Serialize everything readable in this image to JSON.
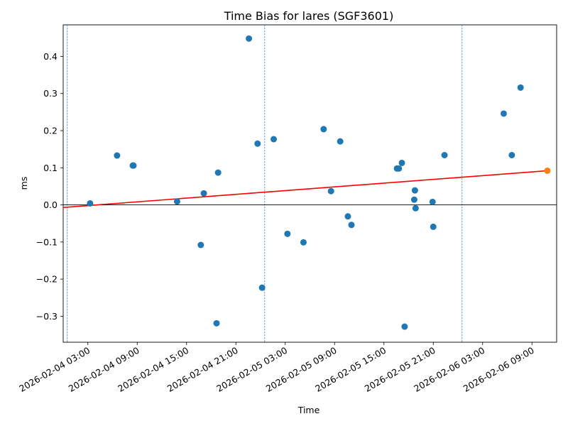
{
  "chart_data": {
    "type": "scatter",
    "title": "Time Bias for lares (SGF3601)",
    "xlabel": "Time",
    "ylabel": "ms",
    "xlim": [
      "2026-02-04 00:00",
      "2026-02-06 12:00"
    ],
    "ylim": [
      -0.37,
      0.485
    ],
    "x_ticks": [
      "2026-02-04 03:00",
      "2026-02-04 09:00",
      "2026-02-04 15:00",
      "2026-02-04 21:00",
      "2026-02-05 03:00",
      "2026-02-05 09:00",
      "2026-02-05 15:00",
      "2026-02-05 21:00",
      "2026-02-06 03:00",
      "2026-02-06 09:00"
    ],
    "y_ticks": [
      -0.3,
      -0.2,
      -0.1,
      0.0,
      0.1,
      0.2,
      0.3,
      0.4
    ],
    "y_tick_labels": [
      "−0.3",
      "−0.2",
      "−0.1",
      "0.0",
      "0.1",
      "0.2",
      "0.3",
      "0.4"
    ],
    "vertical_lines": [
      "2026-02-04 00:30",
      "2026-02-05 00:30",
      "2026-02-06 00:30"
    ],
    "zero_line": 0.0,
    "grid": false,
    "colors": {
      "points": "#1f77b4",
      "highlight": "#ff7f0e",
      "trend": "#ff0000",
      "vlines": "#1f77b4",
      "zero": "#000000"
    },
    "series": [
      {
        "points": [
          {
            "x": "2026-02-04 03:16",
            "y": 0.004
          },
          {
            "x": "2026-02-04 06:33",
            "y": 0.133
          },
          {
            "x": "2026-02-04 08:28",
            "y": 0.106
          },
          {
            "x": "2026-02-04 08:33",
            "y": 0.106
          },
          {
            "x": "2026-02-04 13:51",
            "y": 0.009
          },
          {
            "x": "2026-02-04 16:44",
            "y": -0.108
          },
          {
            "x": "2026-02-04 17:06",
            "y": 0.031
          },
          {
            "x": "2026-02-04 18:39",
            "y": -0.319
          },
          {
            "x": "2026-02-04 18:50",
            "y": 0.087
          },
          {
            "x": "2026-02-04 22:35",
            "y": 0.448
          },
          {
            "x": "2026-02-04 23:38",
            "y": 0.165
          },
          {
            "x": "2026-02-05 00:11",
            "y": -0.223
          },
          {
            "x": "2026-02-05 01:36",
            "y": 0.177
          },
          {
            "x": "2026-02-05 03:16",
            "y": -0.078
          },
          {
            "x": "2026-02-05 05:13",
            "y": -0.101
          },
          {
            "x": "2026-02-05 07:40",
            "y": 0.204
          },
          {
            "x": "2026-02-05 08:34",
            "y": 0.037
          },
          {
            "x": "2026-02-05 09:41",
            "y": 0.171
          },
          {
            "x": "2026-02-05 10:37",
            "y": -0.031
          },
          {
            "x": "2026-02-05 11:03",
            "y": -0.054
          },
          {
            "x": "2026-02-05 16:35",
            "y": 0.098
          },
          {
            "x": "2026-02-05 16:49",
            "y": 0.098
          },
          {
            "x": "2026-02-05 17:11",
            "y": 0.113
          },
          {
            "x": "2026-02-05 17:31",
            "y": -0.328
          },
          {
            "x": "2026-02-05 18:41",
            "y": 0.014
          },
          {
            "x": "2026-02-05 18:46",
            "y": 0.039
          },
          {
            "x": "2026-02-05 18:51",
            "y": -0.009
          },
          {
            "x": "2026-02-05 20:55",
            "y": 0.008
          },
          {
            "x": "2026-02-05 21:00",
            "y": -0.059
          },
          {
            "x": "2026-02-05 22:22",
            "y": 0.134
          },
          {
            "x": "2026-02-06 05:34",
            "y": 0.246
          },
          {
            "x": "2026-02-06 06:33",
            "y": 0.134
          },
          {
            "x": "2026-02-06 07:37",
            "y": 0.316
          }
        ],
        "color": "#1f77b4"
      },
      {
        "points": [
          {
            "x": "2026-02-06 10:52",
            "y": 0.092
          }
        ],
        "color": "#ff7f0e"
      }
    ],
    "trend_line": {
      "from": {
        "x": "2026-02-04 00:00",
        "y": -0.007
      },
      "to": {
        "x": "2026-02-06 10:52",
        "y": 0.092
      },
      "color": "#ff0000"
    }
  }
}
